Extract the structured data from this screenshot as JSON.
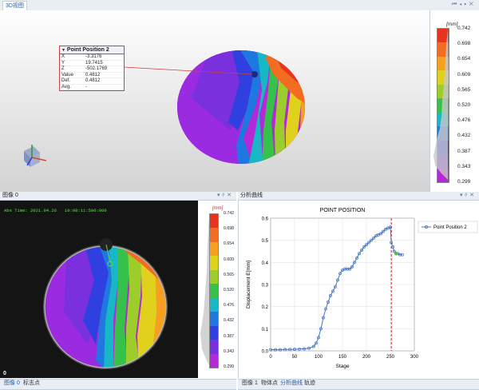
{
  "top_view": {
    "tab": "3D视图",
    "unit": "[mm]",
    "scale": [
      "0.742",
      "0.698",
      "0.654",
      "0.609",
      "0.565",
      "0.520",
      "0.476",
      "0.432",
      "0.387",
      "0.343",
      "0.299"
    ],
    "scale_colors": [
      "#e8341c",
      "#f26c22",
      "#f5a020",
      "#e0d21c",
      "#9ccd2a",
      "#36c24a",
      "#17b7c6",
      "#1f78e0",
      "#2f3fe0",
      "#7a30dc",
      "#b528d8"
    ],
    "info_box": {
      "title": "Point Position 2",
      "rows": [
        {
          "label": "X",
          "value": "-3.3176"
        },
        {
          "label": "Y",
          "value": "19.7415"
        },
        {
          "label": "Z",
          "value": "-502.1769"
        },
        {
          "label": "Value",
          "value": "0.4812"
        },
        {
          "label": "Def.",
          "value": "0.4812"
        },
        {
          "label": "Avg.",
          "value": "-"
        }
      ]
    }
  },
  "image_panel": {
    "title": "图像 0",
    "overlay_time": "Abs Time: 2021.04.26   10:00:11:590:000",
    "frame_index": "0",
    "tabs": [
      "图像 0",
      "标志点"
    ]
  },
  "chart_panel": {
    "title": "分析曲线",
    "tabs": [
      "图像 1",
      "物体点",
      "分析曲线",
      "轨迹"
    ]
  },
  "chart_data": {
    "type": "line",
    "title": "POINT POSITION",
    "xlabel": "Stage",
    "ylabel": "Displacement E[mm]",
    "xlim": [
      0,
      300
    ],
    "ylim": [
      0,
      0.6
    ],
    "xticks": [
      0,
      50,
      100,
      150,
      200,
      250,
      300
    ],
    "yticks": [
      0,
      0.1,
      0.2,
      0.3,
      0.4,
      0.5,
      0.6
    ],
    "grid": true,
    "legend_position": "right",
    "marker_line_x": 252,
    "series": [
      {
        "name": "Point Position 2",
        "color": "#4472c4",
        "x": [
          0,
          10,
          20,
          30,
          40,
          50,
          60,
          70,
          80,
          90,
          95,
          100,
          105,
          110,
          115,
          120,
          125,
          130,
          135,
          140,
          145,
          150,
          155,
          160,
          165,
          170,
          175,
          180,
          185,
          190,
          195,
          200,
          205,
          210,
          215,
          220,
          225,
          230,
          235,
          240,
          245,
          250,
          252,
          255,
          258,
          262,
          266,
          270,
          275
        ],
        "y": [
          0.005,
          0.005,
          0.005,
          0.006,
          0.006,
          0.007,
          0.008,
          0.009,
          0.012,
          0.02,
          0.035,
          0.06,
          0.1,
          0.15,
          0.19,
          0.22,
          0.25,
          0.27,
          0.29,
          0.32,
          0.35,
          0.365,
          0.37,
          0.37,
          0.37,
          0.38,
          0.4,
          0.42,
          0.44,
          0.455,
          0.47,
          0.48,
          0.49,
          0.5,
          0.51,
          0.52,
          0.525,
          0.53,
          0.54,
          0.55,
          0.555,
          0.56,
          0.49,
          0.47,
          0.45,
          0.44,
          0.44,
          0.435,
          0.435
        ]
      }
    ]
  }
}
